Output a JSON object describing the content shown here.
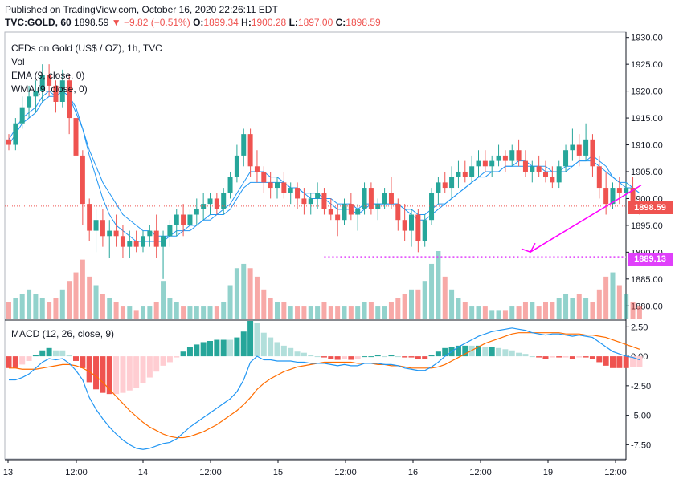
{
  "header": {
    "published": "Published on TradingView.com, October 16, 2020 22:26:11 EDT",
    "symbol": "TVC:GOLD, 60",
    "last": "1898.59",
    "change_arrow": "▼",
    "change": "−9.82 (−0.51%)",
    "o_label": "O:",
    "o": "1899.34",
    "h_label": "H:",
    "h": "1900.28",
    "l_label": "L:",
    "l": "1897.00",
    "c_label": "C:",
    "c": "1898.59"
  },
  "legend": {
    "title": "CFDs on Gold (US$ / OZ), 1h, TVC",
    "vol": "Vol",
    "ema": "EMA (9, close, 0)",
    "wma": "WMA (9, close, 0)",
    "macd": "MACD (12, 26, close, 9)"
  },
  "price_tags": {
    "last": "1898.59",
    "target": "1889.13"
  },
  "colors": {
    "up": "#26a69a",
    "down": "#ef5350",
    "ema": "#2196f3",
    "wma": "#2196f3",
    "macd_line": "#2196f3",
    "signal_line": "#ff6d00",
    "arrow": "#ff00ff",
    "target_line": "#e040fb"
  },
  "chart_data": [
    {
      "type": "candlestick",
      "title": "CFDs on Gold (US$ / OZ), 1h, TVC",
      "ylim": [
        1877.5,
        1931
      ],
      "y_ticks": [
        "1930.00",
        "1925.00",
        "1920.00",
        "1915.00",
        "1910.00",
        "1905.00",
        "1900.00",
        "1895.00",
        "1890.00",
        "1885.00",
        "1880.00"
      ],
      "x_ticks": [
        "13",
        "12:00",
        "14",
        "12:00",
        "15",
        "12:00",
        "16",
        "12:00",
        "19",
        "12:00"
      ],
      "last_price": 1898.59,
      "target_price": 1889.13,
      "ohlc": [
        [
          1911,
          1912,
          1909,
          1910
        ],
        [
          1910,
          1915,
          1909,
          1914
        ],
        [
          1914,
          1919,
          1913,
          1917
        ],
        [
          1917,
          1921,
          1915,
          1919
        ],
        [
          1919,
          1922,
          1916,
          1920
        ],
        [
          1920,
          1925,
          1918,
          1923
        ],
        [
          1923,
          1925,
          1919,
          1921
        ],
        [
          1921,
          1922,
          1916,
          1918
        ],
        [
          1918,
          1924,
          1917,
          1922
        ],
        [
          1922,
          1923,
          1912,
          1915
        ],
        [
          1915,
          1917,
          1904,
          1908
        ],
        [
          1908,
          1909,
          1895,
          1899
        ],
        [
          1899,
          1900,
          1892,
          1894
        ],
        [
          1894,
          1898,
          1890,
          1896
        ],
        [
          1896,
          1898,
          1891,
          1893
        ],
        [
          1893,
          1896,
          1889,
          1894
        ],
        [
          1894,
          1897,
          1891,
          1893
        ],
        [
          1893,
          1895,
          1889,
          1891
        ],
        [
          1891,
          1894,
          1889,
          1892
        ],
        [
          1892,
          1894,
          1890,
          1891
        ],
        [
          1891,
          1894,
          1890,
          1893
        ],
        [
          1893,
          1895,
          1891,
          1894
        ],
        [
          1894,
          1897,
          1889,
          1891
        ],
        [
          1891,
          1894,
          1885,
          1893
        ],
        [
          1893,
          1896,
          1891,
          1895
        ],
        [
          1895,
          1898,
          1893,
          1897
        ],
        [
          1897,
          1899,
          1893,
          1895
        ],
        [
          1895,
          1898,
          1894,
          1897
        ],
        [
          1897,
          1900,
          1895,
          1898
        ],
        [
          1898,
          1901,
          1896,
          1899
        ],
        [
          1899,
          1901,
          1897,
          1900
        ],
        [
          1900,
          1901,
          1897,
          1898
        ],
        [
          1898,
          1902,
          1897,
          1901
        ],
        [
          1901,
          1905,
          1900,
          1904
        ],
        [
          1904,
          1910,
          1903,
          1908
        ],
        [
          1908,
          1913,
          1906,
          1912
        ],
        [
          1912,
          1913,
          1904,
          1906
        ],
        [
          1906,
          1909,
          1903,
          1905
        ],
        [
          1905,
          1906,
          1901,
          1903
        ],
        [
          1903,
          1905,
          1900,
          1902
        ],
        [
          1902,
          1904,
          1900,
          1903
        ],
        [
          1903,
          1905,
          1900,
          1901
        ],
        [
          1901,
          1903,
          1899,
          1902
        ],
        [
          1902,
          1903,
          1898,
          1900
        ],
        [
          1900,
          1902,
          1897,
          1899
        ],
        [
          1899,
          1901,
          1897,
          1900
        ],
        [
          1900,
          1903,
          1898,
          1901
        ],
        [
          1901,
          1902,
          1897,
          1898
        ],
        [
          1898,
          1900,
          1896,
          1897
        ],
        [
          1897,
          1899,
          1893,
          1896
        ],
        [
          1896,
          1900,
          1895,
          1899
        ],
        [
          1899,
          1901,
          1896,
          1897
        ],
        [
          1897,
          1899,
          1894,
          1898
        ],
        [
          1898,
          1903,
          1897,
          1902
        ],
        [
          1902,
          1903,
          1897,
          1898
        ],
        [
          1898,
          1900,
          1896,
          1899
        ],
        [
          1899,
          1902,
          1898,
          1901
        ],
        [
          1901,
          1904,
          1898,
          1899
        ],
        [
          1899,
          1900,
          1894,
          1896
        ],
        [
          1896,
          1899,
          1892,
          1894
        ],
        [
          1894,
          1898,
          1891,
          1897
        ],
        [
          1897,
          1898,
          1890,
          1892
        ],
        [
          1892,
          1897,
          1891,
          1896
        ],
        [
          1896,
          1902,
          1895,
          1901
        ],
        [
          1901,
          1904,
          1899,
          1903
        ],
        [
          1903,
          1905,
          1901,
          1902
        ],
        [
          1902,
          1906,
          1900,
          1904
        ],
        [
          1904,
          1907,
          1902,
          1905
        ],
        [
          1905,
          1907,
          1903,
          1904
        ],
        [
          1904,
          1908,
          1903,
          1906
        ],
        [
          1906,
          1909,
          1904,
          1907
        ],
        [
          1907,
          1909,
          1905,
          1906
        ],
        [
          1906,
          1908,
          1904,
          1907
        ],
        [
          1907,
          1910,
          1906,
          1908
        ],
        [
          1908,
          1909,
          1905,
          1907
        ],
        [
          1907,
          1910,
          1906,
          1909
        ],
        [
          1909,
          1911,
          1906,
          1907
        ],
        [
          1907,
          1909,
          1904,
          1905
        ],
        [
          1905,
          1907,
          1903,
          1906
        ],
        [
          1906,
          1908,
          1904,
          1905
        ],
        [
          1905,
          1907,
          1903,
          1904
        ],
        [
          1904,
          1906,
          1902,
          1903
        ],
        [
          1903,
          1907,
          1902,
          1906
        ],
        [
          1906,
          1910,
          1905,
          1909
        ],
        [
          1909,
          1913,
          1907,
          1910
        ],
        [
          1910,
          1912,
          1906,
          1908
        ],
        [
          1908,
          1914,
          1907,
          1911
        ],
        [
          1911,
          1912,
          1904,
          1906
        ],
        [
          1906,
          1908,
          1900,
          1902
        ],
        [
          1902,
          1905,
          1897,
          1899
        ],
        [
          1899,
          1903,
          1898,
          1902
        ],
        [
          1902,
          1904,
          1899,
          1901
        ],
        [
          1901,
          1903,
          1900,
          1902
        ],
        [
          1902,
          1904,
          1898,
          1899
        ],
        [
          1899,
          1900,
          1897,
          1898.59
        ]
      ],
      "ema": [
        1911,
        1913,
        1915,
        1916,
        1917,
        1919,
        1920,
        1919,
        1920,
        1919,
        1916,
        1913,
        1909,
        1906,
        1903,
        1901,
        1899,
        1897,
        1896,
        1895,
        1894,
        1894,
        1893,
        1893,
        1893,
        1894,
        1894,
        1895,
        1895,
        1896,
        1896,
        1897,
        1897,
        1898,
        1900,
        1902,
        1903,
        1903,
        1903,
        1903,
        1903,
        1903,
        1902,
        1902,
        1901,
        1901,
        1901,
        1900,
        1900,
        1899,
        1899,
        1899,
        1898,
        1899,
        1899,
        1899,
        1899,
        1899,
        1899,
        1898,
        1898,
        1897,
        1897,
        1898,
        1899,
        1899,
        1900,
        1901,
        1902,
        1903,
        1904,
        1904,
        1905,
        1905,
        1906,
        1906,
        1906,
        1906,
        1906,
        1906,
        1906,
        1905,
        1905,
        1906,
        1906,
        1907,
        1907,
        1907,
        1906,
        1905,
        1904,
        1903,
        1903,
        1902,
        1901
      ],
      "wma": [
        1910,
        1912,
        1914,
        1915,
        1916,
        1918,
        1919,
        1919,
        1920,
        1919,
        1917,
        1913,
        1908,
        1904,
        1900,
        1897,
        1895,
        1894,
        1893,
        1892,
        1892,
        1892,
        1892,
        1892,
        1893,
        1893,
        1894,
        1894,
        1895,
        1896,
        1897,
        1897,
        1898,
        1899,
        1901,
        1903,
        1905,
        1905,
        1905,
        1904,
        1904,
        1903,
        1902,
        1902,
        1901,
        1900,
        1900,
        1900,
        1899,
        1898,
        1898,
        1898,
        1897,
        1898,
        1899,
        1899,
        1899,
        1899,
        1899,
        1898,
        1897,
        1896,
        1896,
        1897,
        1898,
        1899,
        1900,
        1901,
        1902,
        1903,
        1904,
        1905,
        1905,
        1905,
        1906,
        1906,
        1907,
        1907,
        1906,
        1906,
        1905,
        1905,
        1905,
        1905,
        1906,
        1907,
        1907,
        1908,
        1907,
        1906,
        1904,
        1903,
        1902,
        1902,
        1901
      ],
      "volume": [
        4,
        5,
        6,
        7,
        6,
        5,
        4,
        5,
        7,
        9,
        11,
        14,
        10,
        8,
        6,
        5,
        4,
        3,
        3,
        2,
        3,
        3,
        4,
        9,
        5,
        4,
        3,
        3,
        3,
        3,
        3,
        3,
        4,
        8,
        12,
        13,
        12,
        10,
        7,
        5,
        4,
        4,
        3,
        3,
        3,
        3,
        3,
        4,
        3,
        3,
        3,
        3,
        3,
        4,
        4,
        3,
        3,
        4,
        5,
        6,
        7,
        7,
        9,
        13,
        16,
        10,
        7,
        5,
        4,
        3,
        3,
        3,
        2,
        2,
        2,
        3,
        3,
        4,
        4,
        3,
        4,
        4,
        5,
        6,
        5,
        6,
        5,
        4,
        7,
        10,
        11,
        8,
        6,
        4,
        3
      ]
    },
    {
      "type": "macd",
      "title": "MACD (12, 26, close, 9)",
      "ylim": [
        -8.7,
        3.0
      ],
      "y_ticks": [
        "2.50",
        "0.00",
        "-2.50",
        "-5.00",
        "-7.50"
      ],
      "macd": [
        -2.0,
        -2.0,
        -1.8,
        -1.5,
        -1.0,
        -0.5,
        -0.2,
        -0.3,
        -0.2,
        -0.6,
        -1.2,
        -2.0,
        -3.5,
        -4.5,
        -5.3,
        -6.0,
        -6.6,
        -7.1,
        -7.5,
        -7.8,
        -7.9,
        -7.8,
        -7.6,
        -7.4,
        -7.3,
        -7.0,
        -6.5,
        -6.0,
        -5.6,
        -5.2,
        -4.8,
        -4.4,
        -4.0,
        -3.6,
        -3.0,
        -2.0,
        -0.5,
        0.0,
        -0.3,
        -0.3,
        -0.4,
        -0.4,
        -0.4,
        -0.5,
        -0.5,
        -0.6,
        -0.6,
        -0.6,
        -0.7,
        -0.8,
        -0.7,
        -0.8,
        -0.8,
        -0.6,
        -0.6,
        -0.6,
        -0.7,
        -0.7,
        -0.8,
        -1.0,
        -1.1,
        -1.2,
        -1.2,
        -0.9,
        -0.5,
        0.0,
        0.4,
        0.8,
        1.1,
        1.4,
        1.7,
        1.9,
        2.1,
        2.2,
        2.3,
        2.4,
        2.3,
        2.2,
        2.0,
        1.9,
        1.8,
        1.9,
        1.9,
        1.8,
        1.7,
        1.8,
        1.7,
        1.6,
        1.2,
        0.8,
        0.4,
        0.2,
        0.0,
        -0.1,
        -0.3
      ],
      "signal": [
        -1.0,
        -1.0,
        -1.1,
        -1.1,
        -1.1,
        -1.0,
        -0.9,
        -0.8,
        -0.7,
        -0.7,
        -0.8,
        -1.0,
        -1.3,
        -1.7,
        -2.2,
        -2.8,
        -3.4,
        -4.0,
        -4.6,
        -5.1,
        -5.6,
        -6.0,
        -6.3,
        -6.6,
        -6.8,
        -6.9,
        -6.9,
        -6.8,
        -6.6,
        -6.4,
        -6.1,
        -5.8,
        -5.4,
        -5.0,
        -4.6,
        -4.1,
        -3.5,
        -2.8,
        -2.3,
        -1.9,
        -1.6,
        -1.3,
        -1.1,
        -0.9,
        -0.8,
        -0.7,
        -0.6,
        -0.5,
        -0.5,
        -0.5,
        -0.5,
        -0.5,
        -0.6,
        -0.6,
        -0.6,
        -0.7,
        -0.7,
        -0.8,
        -0.8,
        -0.9,
        -1.0,
        -1.0,
        -1.0,
        -1.0,
        -0.9,
        -0.7,
        -0.4,
        -0.1,
        0.2,
        0.5,
        0.8,
        1.1,
        1.3,
        1.5,
        1.7,
        1.9,
        2.0,
        2.0,
        2.0,
        2.0,
        2.0,
        2.0,
        2.0,
        1.9,
        1.9,
        1.9,
        1.8,
        1.8,
        1.7,
        1.6,
        1.4,
        1.2,
        1.0,
        0.8,
        0.6
      ],
      "x_ticks": [
        "13",
        "12:00",
        "14",
        "12:00",
        "15",
        "12:00",
        "16",
        "12:00",
        "19",
        "12:00"
      ]
    }
  ]
}
